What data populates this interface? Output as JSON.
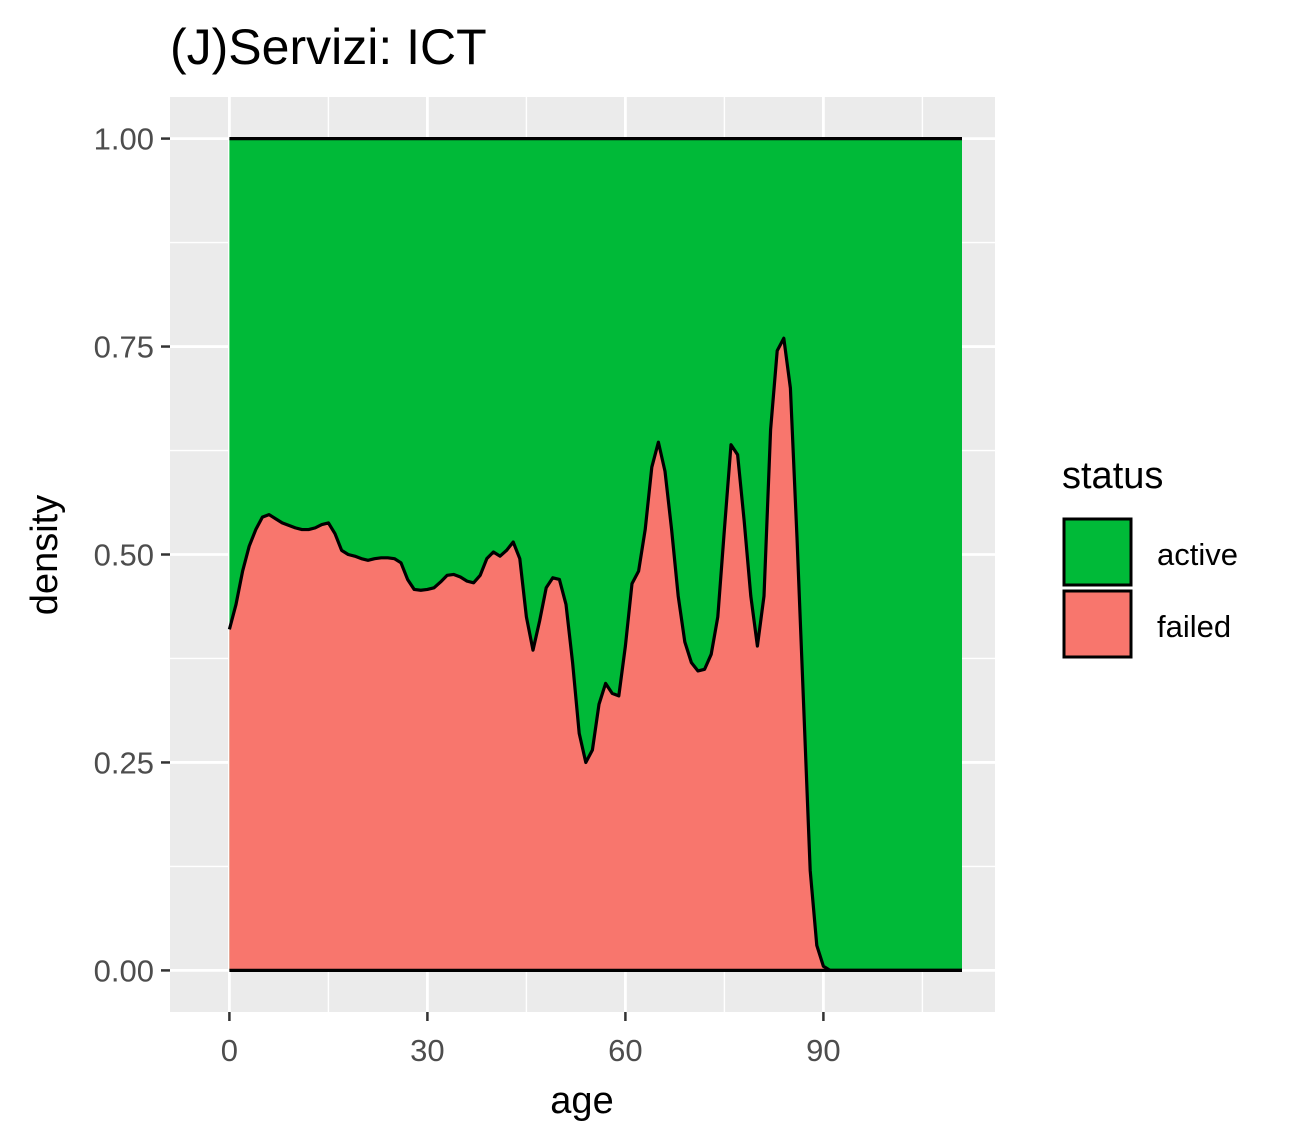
{
  "chart_data": {
    "type": "area",
    "title": "(J)Servizi: ICT",
    "xlabel": "age",
    "ylabel": "density",
    "xlim": [
      -9,
      116
    ],
    "ylim": [
      -0.05,
      1.05
    ],
    "x_ticks": [
      0,
      30,
      60,
      90
    ],
    "x_tick_labels": [
      "0",
      "30",
      "60",
      "90"
    ],
    "y_ticks": [
      0.0,
      0.25,
      0.5,
      0.75,
      1.0
    ],
    "y_tick_labels": [
      "0.00",
      "0.25",
      "0.50",
      "0.75",
      "1.00"
    ],
    "x_minor_ticks": [
      15,
      45,
      75,
      105
    ],
    "y_minor_ticks": [
      0.125,
      0.375,
      0.625,
      0.875
    ],
    "grid": true,
    "legend": {
      "title": "status",
      "placement": "right",
      "entries": [
        {
          "label": "active",
          "color": "#00BA38"
        },
        {
          "label": "failed",
          "color": "#F8766D"
        }
      ]
    },
    "stacking": "fill",
    "series": [
      {
        "name": "failed",
        "color": "#F8766D",
        "role": "bottom"
      },
      {
        "name": "active",
        "color": "#00BA38",
        "role": "top"
      }
    ],
    "x": [
      0,
      1,
      2,
      3,
      4,
      5,
      6,
      7,
      8,
      9,
      10,
      11,
      12,
      13,
      14,
      15,
      16,
      17,
      18,
      19,
      20,
      21,
      22,
      23,
      24,
      25,
      26,
      27,
      28,
      29,
      30,
      31,
      32,
      33,
      34,
      35,
      36,
      37,
      38,
      39,
      40,
      41,
      42,
      43,
      44,
      45,
      46,
      47,
      48,
      49,
      50,
      51,
      52,
      53,
      54,
      55,
      56,
      57,
      58,
      59,
      60,
      61,
      62,
      63,
      64,
      65,
      66,
      67,
      68,
      69,
      70,
      71,
      72,
      73,
      74,
      75,
      76,
      77,
      78,
      79,
      80,
      81,
      82,
      83,
      84,
      85,
      86,
      87,
      88,
      89,
      90,
      91,
      92,
      95,
      100,
      105,
      111
    ],
    "failed_share": [
      0.41,
      0.44,
      0.48,
      0.51,
      0.53,
      0.545,
      0.548,
      0.543,
      0.538,
      0.535,
      0.532,
      0.53,
      0.53,
      0.532,
      0.536,
      0.538,
      0.525,
      0.505,
      0.5,
      0.498,
      0.495,
      0.493,
      0.495,
      0.496,
      0.496,
      0.495,
      0.49,
      0.47,
      0.458,
      0.457,
      0.458,
      0.46,
      0.467,
      0.475,
      0.476,
      0.473,
      0.468,
      0.466,
      0.475,
      0.495,
      0.503,
      0.498,
      0.505,
      0.515,
      0.495,
      0.425,
      0.385,
      0.42,
      0.46,
      0.472,
      0.47,
      0.44,
      0.37,
      0.285,
      0.25,
      0.265,
      0.32,
      0.345,
      0.333,
      0.33,
      0.39,
      0.465,
      0.48,
      0.53,
      0.605,
      0.635,
      0.6,
      0.53,
      0.45,
      0.395,
      0.37,
      0.36,
      0.362,
      0.38,
      0.425,
      0.53,
      0.632,
      0.62,
      0.54,
      0.45,
      0.39,
      0.45,
      0.65,
      0.745,
      0.76,
      0.7,
      0.52,
      0.32,
      0.12,
      0.03,
      0.005,
      0.0,
      0.0,
      0.0,
      0.0,
      0.0,
      0.0
    ]
  }
}
